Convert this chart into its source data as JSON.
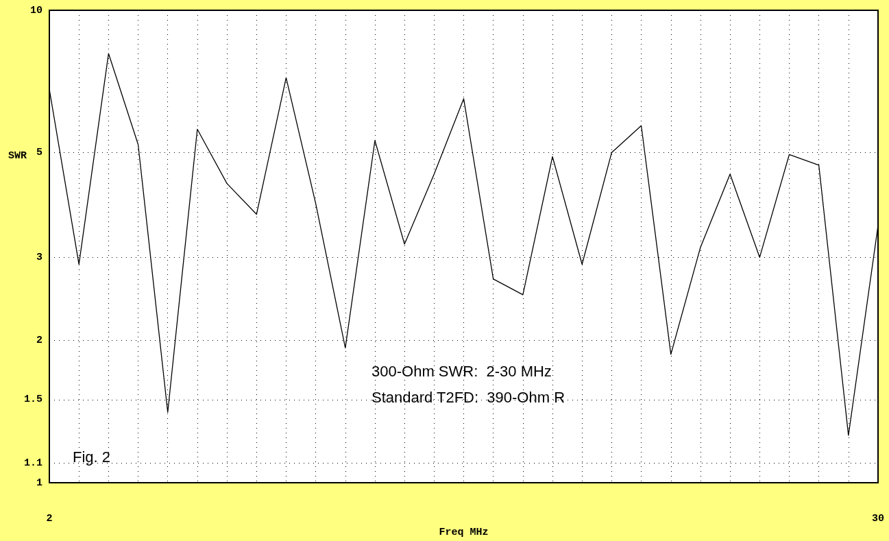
{
  "chart_data": {
    "type": "line",
    "xlabel": "Freq MHz",
    "ylabel": "SWR",
    "annotations": [
      "300-Ohm SWR:  2-30 MHz",
      "Standard T2FD:  390-Ohm R",
      "Fig. 2"
    ],
    "x": [
      2,
      3,
      4,
      5,
      6,
      7,
      8,
      9,
      10,
      11,
      12,
      13,
      14,
      15,
      16,
      17,
      18,
      19,
      20,
      21,
      22,
      23,
      24,
      25,
      26,
      27,
      28,
      29,
      30
    ],
    "series": [
      {
        "color": "#000000",
        "values": [
          6.8,
          2.9,
          8.1,
          5.2,
          1.41,
          5.6,
          4.3,
          3.7,
          7.2,
          3.9,
          1.93,
          5.3,
          3.2,
          4.5,
          6.5,
          2.7,
          2.5,
          4.9,
          2.9,
          5.0,
          5.7,
          1.87,
          3.15,
          4.5,
          3.0,
          4.95,
          4.7,
          1.26,
          3.5
        ]
      }
    ],
    "xlim": [
      2,
      30
    ],
    "xticks": [
      2,
      {
        "value": 3,
        "label": null
      },
      {
        "value": 4,
        "label": null
      },
      {
        "value": 5,
        "label": null
      },
      {
        "value": 6,
        "label": null
      },
      {
        "value": 7,
        "label": null
      },
      {
        "value": 8,
        "label": null
      },
      {
        "value": 9,
        "label": null
      },
      {
        "value": 10,
        "label": null
      },
      {
        "value": 11,
        "label": null
      },
      {
        "value": 12,
        "label": null
      },
      {
        "value": 13,
        "label": null
      },
      {
        "value": 14,
        "label": null
      },
      {
        "value": 15,
        "label": null
      },
      {
        "value": 16,
        "label": null
      },
      {
        "value": 17,
        "label": null
      },
      {
        "value": 18,
        "label": null
      },
      {
        "value": 19,
        "label": null
      },
      {
        "value": 20,
        "label": null
      },
      {
        "value": 21,
        "label": null
      },
      {
        "value": 22,
        "label": null
      },
      {
        "value": 23,
        "label": null
      },
      {
        "value": 24,
        "label": null
      },
      {
        "value": 25,
        "label": null
      },
      {
        "value": 26,
        "label": null
      },
      {
        "value": 27,
        "label": null
      },
      {
        "value": 28,
        "label": null
      },
      {
        "value": 29,
        "label": null
      },
      30
    ],
    "ylim": [
      1,
      10
    ],
    "yticks": [
      1,
      1.1,
      1.5,
      2,
      3,
      5,
      10
    ],
    "log": true,
    "grid": true,
    "marker": "none",
    "line_style": "solid"
  }
}
